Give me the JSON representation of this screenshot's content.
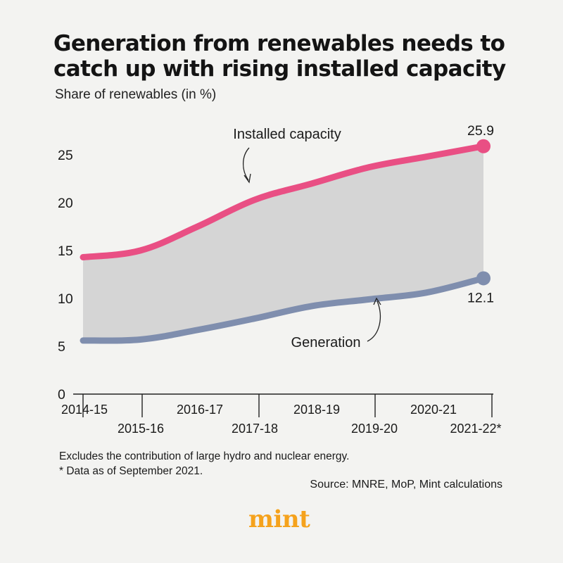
{
  "header": {
    "title": "Generation from renewables needs to catch up with rising installed capacity",
    "subtitle": "Share of renewables (in %)"
  },
  "footer": {
    "note1": "Excludes the contribution of large hydro and nuclear energy.",
    "note2": "* Data as of September 2021.",
    "source": "Source: MNRE, MoP, Mint calculations",
    "logo": "mint"
  },
  "chart_data": {
    "type": "area",
    "title": "Generation from renewables needs to catch up with rising installed capacity",
    "ylabel": "Share of renewables (in %)",
    "xlabel": "",
    "categories": [
      "2014-15",
      "2015-16",
      "2016-17",
      "2017-18",
      "2018-19",
      "2019-20",
      "2020-21",
      "2021-22*"
    ],
    "yticks": [
      0,
      5,
      10,
      15,
      20,
      25
    ],
    "ylim": [
      0,
      28
    ],
    "grid": false,
    "series": [
      {
        "name": "Installed capacity",
        "color": "#e94f84",
        "values": [
          14.3,
          15.0,
          17.5,
          20.3,
          22.0,
          23.7,
          24.8,
          25.9
        ]
      },
      {
        "name": "Generation",
        "color": "#7f8eae",
        "values": [
          5.6,
          5.7,
          6.7,
          7.9,
          9.2,
          9.9,
          10.6,
          12.1
        ]
      }
    ],
    "band_color": "#d5d5d5",
    "end_labels": [
      "25.9",
      "12.1"
    ]
  }
}
